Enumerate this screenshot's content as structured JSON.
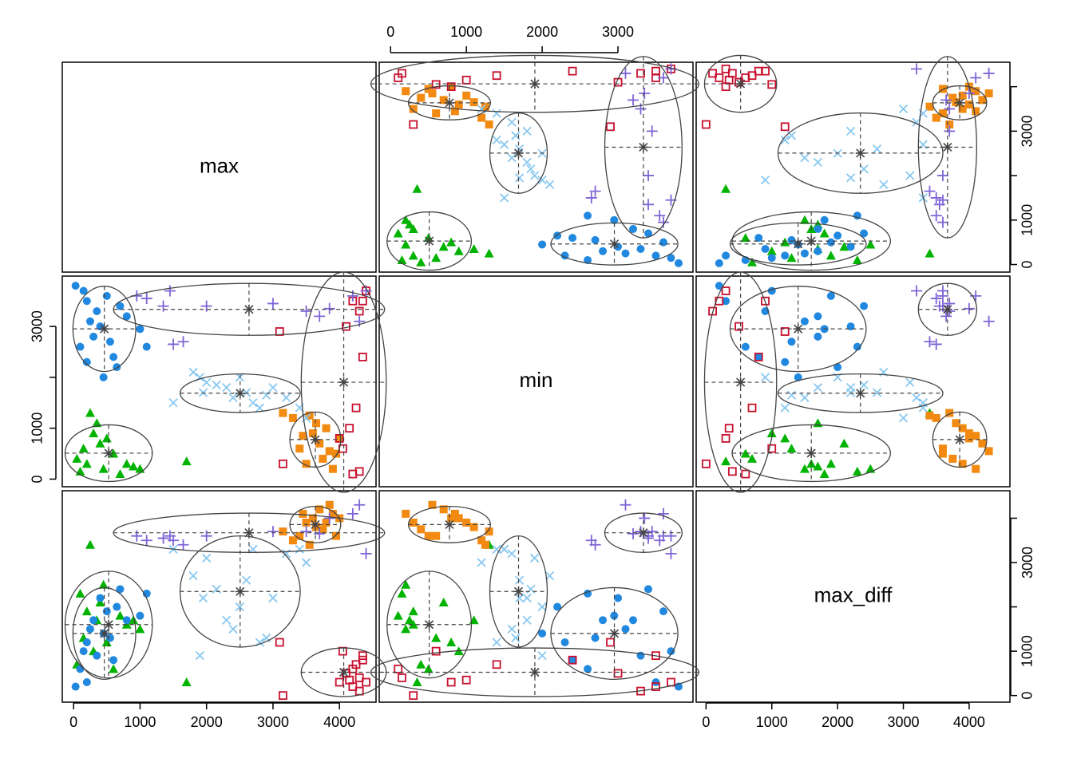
{
  "chart_data": {
    "type": "scatter_matrix",
    "variables": [
      "max",
      "min",
      "max_diff"
    ],
    "lims": [
      [
        -170,
        4550
      ],
      [
        -150,
        3990
      ],
      [
        -150,
        4620
      ]
    ],
    "ticks": [
      [
        0,
        1000,
        2000,
        3000,
        4000
      ],
      [
        0,
        1000,
        2000,
        3000
      ],
      [
        0,
        1000,
        2000,
        3000,
        4000
      ]
    ],
    "row_ticks": [
      [
        0,
        1000,
        {
          "value": 2000,
          "label": null
        },
        3000,
        {
          "value": 4000,
          "label": null
        }
      ],
      [
        0,
        1000,
        {
          "value": 2000,
          "label": null
        },
        3000
      ],
      [
        0,
        1000,
        {
          "value": 2000,
          "label": null
        },
        3000,
        {
          "value": 4000,
          "label": null
        }
      ]
    ],
    "series": [
      {
        "color": "#00b300",
        "marker": "triangle",
        "values": [
          [
            50,
            150,
            200,
            300,
            350,
            400,
            450,
            500,
            600,
            700,
            800,
            900,
            1000,
            1700,
            250,
            100
          ],
          [
            400,
            600,
            300,
            900,
            1100,
            700,
            200,
            800,
            500,
            100,
            300,
            250,
            200,
            350,
            1300,
            150
          ],
          [
            700,
            1300,
            1900,
            1000,
            1700,
            2100,
            2500,
            1200,
            600,
            1800,
            1600,
            1700,
            1500,
            300,
            3400,
            2300
          ]
        ]
      },
      {
        "color": "#2188e0",
        "marker": "circle",
        "values": [
          [
            30,
            100,
            150,
            200,
            250,
            300,
            400,
            450,
            500,
            550,
            600,
            700,
            800,
            1000,
            1100,
            350,
            200,
            650
          ],
          [
            3800,
            2600,
            3700,
            2300,
            3100,
            2800,
            3000,
            2000,
            3600,
            2700,
            2400,
            3400,
            3200,
            2950,
            2600,
            3300,
            3500,
            2200
          ],
          [
            200,
            600,
            1000,
            1200,
            1500,
            1700,
            2200,
            1400,
            1900,
            1300,
            800,
            2400,
            1700,
            1800,
            2300,
            900,
            300,
            2000
          ]
        ]
      },
      {
        "color": "#f28a12",
        "marker": "square",
        "values": [
          [
            3150,
            3300,
            3400,
            3500,
            3600,
            3650,
            3700,
            3750,
            3800,
            3900,
            3950,
            4000,
            3550,
            3850,
            3450
          ],
          [
            1300,
            1200,
            600,
            300,
            900,
            1100,
            700,
            400,
            1000,
            200,
            500,
            800,
            1250,
            550,
            850
          ],
          [
            3700,
            3500,
            3600,
            3900,
            4000,
            3800,
            4200,
            3750,
            3900,
            4100,
            3600,
            4000,
            3400,
            4300,
            4100
          ]
        ]
      },
      {
        "color": "#c8102e",
        "marker": "open-square",
        "values": [
          [
            3150,
            3100,
            4000,
            4100,
            4200,
            4250,
            4300,
            4350,
            4300,
            4400,
            4050,
            4200,
            4350,
            4150
          ],
          [
            300,
            2900,
            800,
            3000,
            3500,
            1400,
            3300,
            2400,
            150,
            3700,
            600,
            100,
            3500,
            1000
          ],
          [
            0,
            1200,
            300,
            500,
            200,
            700,
            100,
            800,
            400,
            300,
            1000,
            600,
            900,
            350
          ]
        ]
      },
      {
        "color": "#7e64d6",
        "marker": "plus",
        "values": [
          [
            950,
            1100,
            1350,
            1500,
            1650,
            1450,
            3500,
            3700,
            3850,
            4200,
            4300,
            4400,
            3000,
            2000
          ],
          [
            3600,
            3550,
            3400,
            2650,
            2700,
            3700,
            3300,
            3200,
            3350,
            3600,
            3100,
            3700,
            3450,
            3400
          ],
          [
            3600,
            3500,
            3550,
            3500,
            3400,
            3600,
            3700,
            3650,
            4000,
            4100,
            4300,
            3200,
            3700,
            3600
          ]
        ]
      },
      {
        "color": "#89c8f0",
        "marker": "cross",
        "values": [
          [
            1500,
            1800,
            1900,
            2000,
            2150,
            2300,
            2400,
            2500,
            2600,
            2700,
            2800,
            2900,
            3000,
            3200,
            3400,
            3500,
            1950
          ],
          [
            1500,
            2100,
            2000,
            1900,
            1850,
            1800,
            1600,
            2000,
            1700,
            1500,
            1400,
            1650,
            1800,
            1600,
            1400,
            1200,
            1700
          ],
          [
            3300,
            2700,
            900,
            3100,
            2400,
            1700,
            1500,
            2000,
            2600,
            3300,
            1200,
            1300,
            2200,
            3200,
            3300,
            3000,
            2200
          ]
        ]
      }
    ]
  }
}
